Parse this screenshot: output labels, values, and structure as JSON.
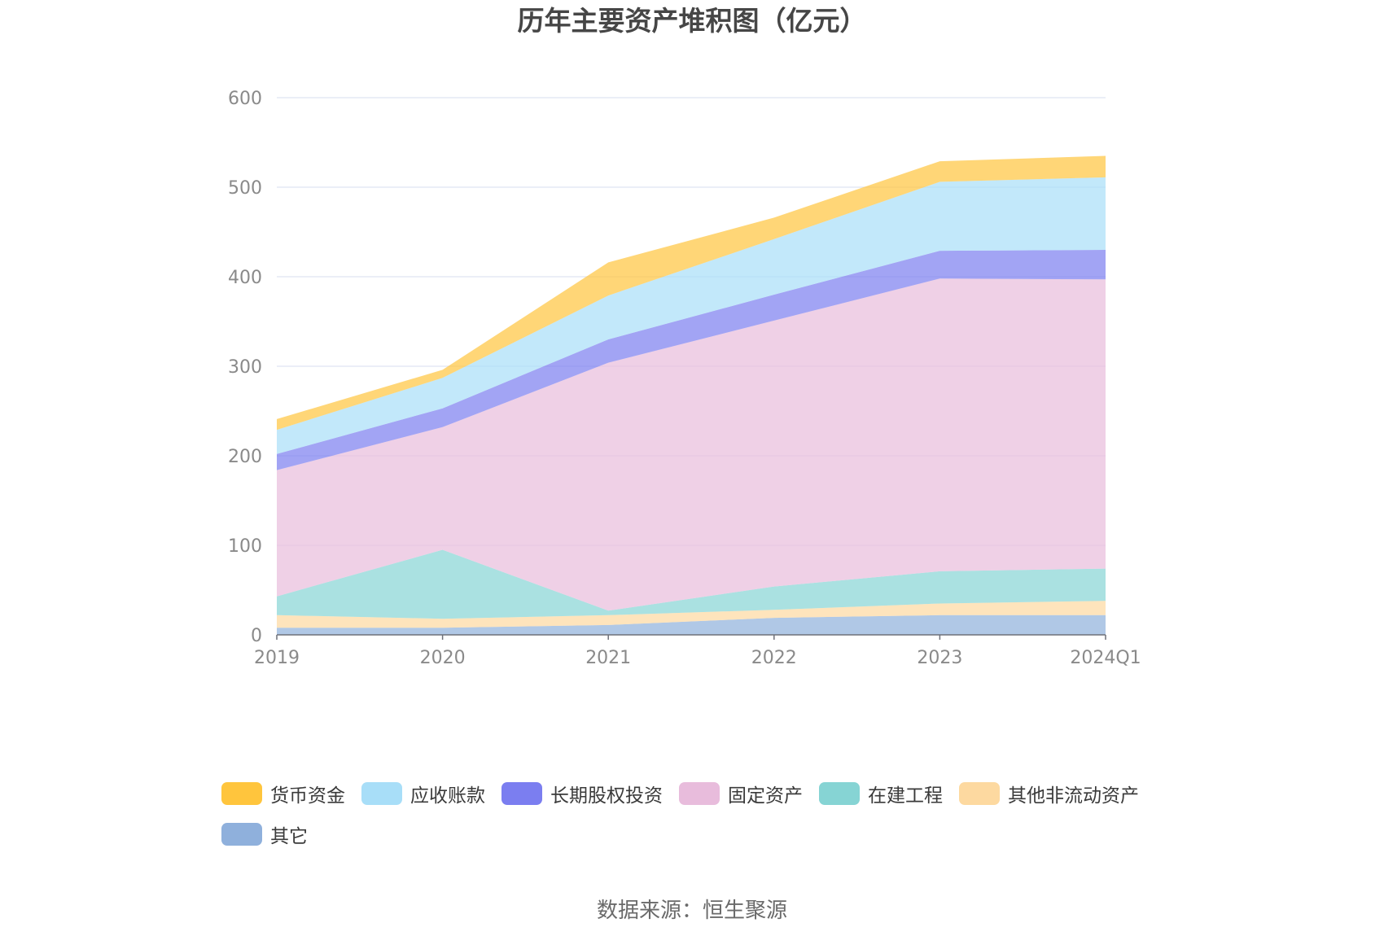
{
  "chart_data": {
    "type": "area",
    "stacked": true,
    "title": "历年主要资产堆积图（亿元）",
    "categories": [
      "2019",
      "2020",
      "2021",
      "2022",
      "2023",
      "2024Q1"
    ],
    "ylim": [
      0,
      600
    ],
    "yticks": [
      0,
      100,
      200,
      300,
      400,
      500,
      600
    ],
    "grid": true,
    "legend_position": "bottom",
    "series": [
      {
        "name": "其它",
        "color": "#8fb0dc",
        "values": [
          8,
          8,
          11,
          19,
          22,
          22
        ]
      },
      {
        "name": "其他非流动资产",
        "color": "#fdd9a0",
        "values": [
          14,
          10,
          11,
          9,
          13,
          16
        ]
      },
      {
        "name": "在建工程",
        "color": "#86d4d4",
        "values": [
          21,
          77,
          5,
          26,
          36,
          36
        ]
      },
      {
        "name": "固定资产",
        "color": "#e8bcdc",
        "values": [
          141,
          137,
          277,
          297,
          327,
          323
        ]
      },
      {
        "name": "长期股权投资",
        "color": "#7b7ef0",
        "values": [
          18,
          21,
          26,
          29,
          31,
          33
        ]
      },
      {
        "name": "应收账款",
        "color": "#a8def8",
        "values": [
          27,
          34,
          49,
          62,
          77,
          81
        ]
      },
      {
        "name": "货币资金",
        "color": "#ffc53d",
        "values": [
          12,
          9,
          37,
          24,
          23,
          24
        ]
      }
    ],
    "legend_order": [
      "货币资金",
      "应收账款",
      "长期股权投资",
      "固定资产",
      "在建工程",
      "其他非流动资产",
      "其它"
    ],
    "source": "数据来源：恒生聚源"
  }
}
